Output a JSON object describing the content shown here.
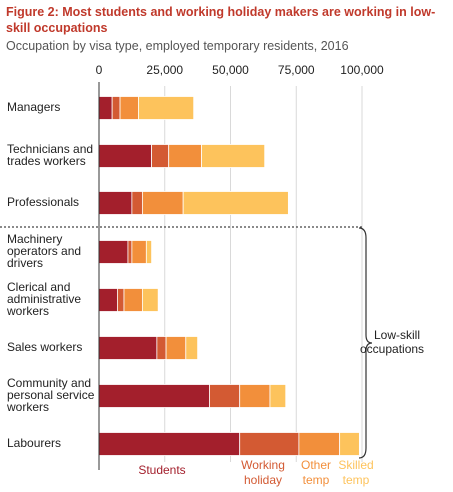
{
  "title": "Figure 2: Most students and working holiday makers are working in low-skill occupations",
  "subtitle": "Occupation by visa type, employed temporary residents, 2016",
  "bracket_label": "Low-skill occupations",
  "colors": {
    "Students": "#a31f2c",
    "Working holiday": "#d35a33",
    "Other temp": "#f28f3b",
    "Skilled temp": "#fdc35c"
  },
  "chart_data": {
    "type": "bar",
    "orientation": "horizontal",
    "stacked": true,
    "title": "Figure 2: Most students and working holiday makers are working in low-skill occupations",
    "subtitle": "Occupation by visa type, employed temporary residents, 2016",
    "xlim": [
      0,
      100000
    ],
    "xticks": [
      0,
      25000,
      50000,
      75000,
      100000
    ],
    "xtick_labels": [
      "0",
      "25,000",
      "50,000",
      "75,000",
      "100,000"
    ],
    "grid": "vertical",
    "legend_position": "bottom",
    "categories": [
      "Managers",
      "Technicians and trades workers",
      "Professionals",
      "Machinery operators and drivers",
      "Clerical and administrative workers",
      "Sales workers",
      "Community and personal service workers",
      "Labourers"
    ],
    "category_display_lines": [
      [
        "Managers"
      ],
      [
        "Technicians and",
        "trades workers"
      ],
      [
        "Professionals"
      ],
      [
        "Machinery",
        "operators and",
        "drivers"
      ],
      [
        "Clerical and",
        "administrative",
        "workers"
      ],
      [
        "Sales workers"
      ],
      [
        "Community and",
        "personal service",
        "workers"
      ],
      [
        "Labourers"
      ]
    ],
    "series": [
      {
        "name": "Students",
        "legend_lines": [
          "Students"
        ],
        "values": [
          5000,
          20000,
          12500,
          11000,
          7000,
          22000,
          42000,
          53500
        ]
      },
      {
        "name": "Working holiday",
        "legend_lines": [
          "Working",
          "holiday"
        ],
        "values": [
          3000,
          6500,
          4000,
          1500,
          2500,
          3500,
          11500,
          22500
        ]
      },
      {
        "name": "Other temp",
        "legend_lines": [
          "Other",
          "temp"
        ],
        "values": [
          7000,
          12500,
          15500,
          5500,
          7000,
          7500,
          11500,
          15500
        ]
      },
      {
        "name": "Skilled temp",
        "legend_lines": [
          "Skilled",
          "temp"
        ],
        "values": [
          21000,
          24000,
          40000,
          2000,
          6000,
          4500,
          6000,
          7500
        ]
      }
    ],
    "annotations": [
      "Low-skill occupations"
    ]
  }
}
